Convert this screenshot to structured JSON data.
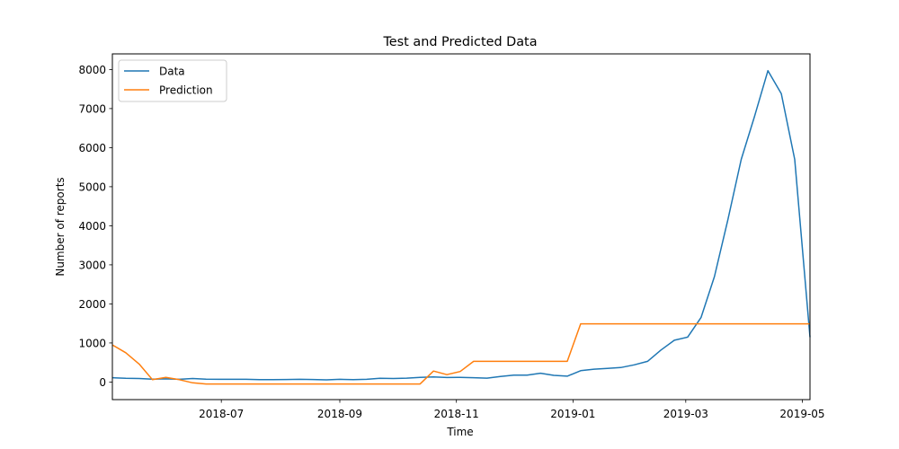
{
  "chart_data": {
    "type": "line",
    "title": "Test and Predicted Data",
    "xlabel": "Time",
    "ylabel": "Number of reports",
    "xlim": [
      "2018-05-05",
      "2019-05-05"
    ],
    "ylim": [
      -450,
      8400
    ],
    "x_ticks": [
      "2018-07",
      "2018-09",
      "2018-11",
      "2019-01",
      "2019-03",
      "2019-05"
    ],
    "y_ticks": [
      0,
      1000,
      2000,
      3000,
      4000,
      5000,
      6000,
      7000,
      8000
    ],
    "grid": false,
    "legend": "top-left",
    "series": [
      {
        "name": "Data",
        "color": "#1f77b4",
        "points": [
          [
            "2018-05-05",
            110
          ],
          [
            "2018-05-12",
            95
          ],
          [
            "2018-05-19",
            90
          ],
          [
            "2018-05-26",
            75
          ],
          [
            "2018-06-02",
            80
          ],
          [
            "2018-06-09",
            70
          ],
          [
            "2018-06-16",
            90
          ],
          [
            "2018-06-23",
            75
          ],
          [
            "2018-06-30",
            70
          ],
          [
            "2018-07-07",
            70
          ],
          [
            "2018-07-14",
            70
          ],
          [
            "2018-07-21",
            60
          ],
          [
            "2018-07-28",
            60
          ],
          [
            "2018-08-04",
            65
          ],
          [
            "2018-08-11",
            70
          ],
          [
            "2018-08-18",
            65
          ],
          [
            "2018-08-25",
            55
          ],
          [
            "2018-09-01",
            70
          ],
          [
            "2018-09-08",
            60
          ],
          [
            "2018-09-15",
            70
          ],
          [
            "2018-09-22",
            95
          ],
          [
            "2018-09-29",
            90
          ],
          [
            "2018-10-06",
            100
          ],
          [
            "2018-10-13",
            120
          ],
          [
            "2018-10-20",
            130
          ],
          [
            "2018-10-27",
            115
          ],
          [
            "2018-11-03",
            120
          ],
          [
            "2018-11-10",
            110
          ],
          [
            "2018-11-17",
            100
          ],
          [
            "2018-11-24",
            140
          ],
          [
            "2018-12-01",
            175
          ],
          [
            "2018-12-08",
            175
          ],
          [
            "2018-12-15",
            225
          ],
          [
            "2018-12-22",
            170
          ],
          [
            "2018-12-29",
            150
          ],
          [
            "2019-01-05",
            290
          ],
          [
            "2019-01-12",
            330
          ],
          [
            "2019-01-19",
            350
          ],
          [
            "2019-01-26",
            370
          ],
          [
            "2019-02-02",
            440
          ],
          [
            "2019-02-09",
            530
          ],
          [
            "2019-02-16",
            820
          ],
          [
            "2019-02-23",
            1070
          ],
          [
            "2019-03-02",
            1150
          ],
          [
            "2019-03-09",
            1650
          ],
          [
            "2019-03-16",
            2700
          ],
          [
            "2019-03-23",
            4150
          ],
          [
            "2019-03-30",
            5700
          ],
          [
            "2019-04-06",
            6800
          ],
          [
            "2019-04-13",
            7970
          ],
          [
            "2019-04-20",
            7380
          ],
          [
            "2019-04-27",
            5700
          ],
          [
            "2019-05-05",
            1150
          ]
        ]
      },
      {
        "name": "Prediction",
        "color": "#ff7f0e",
        "points": [
          [
            "2018-05-05",
            950
          ],
          [
            "2018-05-12",
            750
          ],
          [
            "2018-05-19",
            460
          ],
          [
            "2018-05-26",
            60
          ],
          [
            "2018-06-02",
            120
          ],
          [
            "2018-06-09",
            60
          ],
          [
            "2018-06-16",
            -20
          ],
          [
            "2018-06-23",
            -50
          ],
          [
            "2018-06-30",
            -50
          ],
          [
            "2018-07-07",
            -50
          ],
          [
            "2018-07-14",
            -50
          ],
          [
            "2018-07-21",
            -50
          ],
          [
            "2018-07-28",
            -50
          ],
          [
            "2018-08-04",
            -50
          ],
          [
            "2018-08-11",
            -50
          ],
          [
            "2018-08-18",
            -50
          ],
          [
            "2018-08-25",
            -50
          ],
          [
            "2018-09-01",
            -50
          ],
          [
            "2018-09-08",
            -50
          ],
          [
            "2018-09-15",
            -50
          ],
          [
            "2018-09-22",
            -50
          ],
          [
            "2018-09-29",
            -50
          ],
          [
            "2018-10-06",
            -50
          ],
          [
            "2018-10-13",
            -50
          ],
          [
            "2018-10-20",
            280
          ],
          [
            "2018-10-27",
            190
          ],
          [
            "2018-11-03",
            270
          ],
          [
            "2018-11-10",
            530
          ],
          [
            "2018-11-17",
            530
          ],
          [
            "2018-11-24",
            530
          ],
          [
            "2018-12-01",
            530
          ],
          [
            "2018-12-08",
            530
          ],
          [
            "2018-12-15",
            530
          ],
          [
            "2018-12-22",
            530
          ],
          [
            "2018-12-29",
            530
          ],
          [
            "2019-01-05",
            1490
          ],
          [
            "2019-01-12",
            1490
          ],
          [
            "2019-01-19",
            1490
          ],
          [
            "2019-01-26",
            1490
          ],
          [
            "2019-02-02",
            1490
          ],
          [
            "2019-02-09",
            1490
          ],
          [
            "2019-02-16",
            1490
          ],
          [
            "2019-02-23",
            1490
          ],
          [
            "2019-03-02",
            1490
          ],
          [
            "2019-03-09",
            1490
          ],
          [
            "2019-03-16",
            1490
          ],
          [
            "2019-03-23",
            1490
          ],
          [
            "2019-03-30",
            1490
          ],
          [
            "2019-04-06",
            1490
          ],
          [
            "2019-04-13",
            1490
          ],
          [
            "2019-04-20",
            1490
          ],
          [
            "2019-04-27",
            1490
          ],
          [
            "2019-05-05",
            1490
          ]
        ]
      }
    ]
  }
}
